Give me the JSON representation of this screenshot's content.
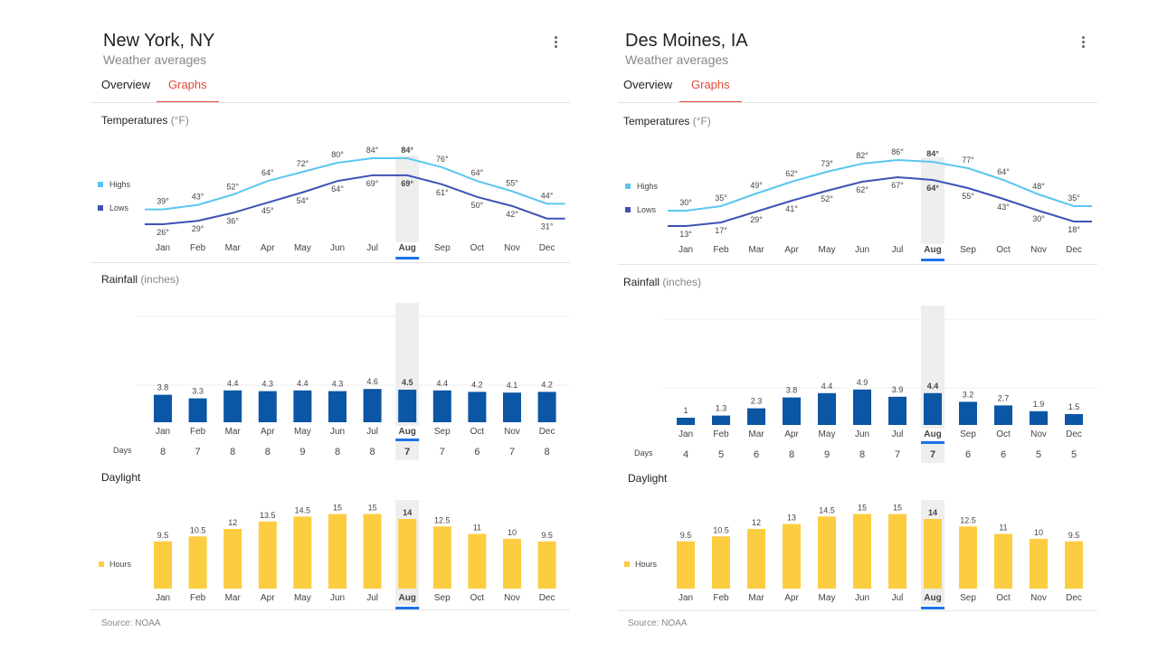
{
  "months": [
    "Jan",
    "Feb",
    "Mar",
    "Apr",
    "May",
    "Jun",
    "Jul",
    "Aug",
    "Sep",
    "Oct",
    "Nov",
    "Dec"
  ],
  "selected_index": 7,
  "colors": {
    "highs": "#5bc6f0",
    "lows": "#3f51b5",
    "rain_bar": "#0b56a5",
    "daylight_bar": "#fccd40",
    "tab_active": "#dd4b39",
    "selected_underline": "#1a73e8"
  },
  "panels": [
    {
      "title": "New York, NY",
      "subtitle": "Weather averages",
      "tabs": [
        "Overview",
        "Graphs"
      ],
      "temp_label": "Temperatures",
      "temp_unit": "(°F)",
      "legend_highs": "Highs",
      "legend_lows": "Lows",
      "rain_label": "Rainfall",
      "rain_unit": "(inches)",
      "days_label": "Days",
      "daylight_label": "Daylight",
      "hours_legend": "Hours",
      "source": "Source: NOAA",
      "chart_data": {
        "temperature": {
          "type": "line",
          "categories": [
            "Jan",
            "Feb",
            "Mar",
            "Apr",
            "May",
            "Jun",
            "Jul",
            "Aug",
            "Sep",
            "Oct",
            "Nov",
            "Dec"
          ],
          "series": [
            {
              "name": "Highs",
              "values": [
                39,
                43,
                52,
                64,
                72,
                80,
                84,
                84,
                76,
                64,
                55,
                44
              ]
            },
            {
              "name": "Lows",
              "values": [
                26,
                29,
                36,
                45,
                54,
                64,
                69,
                69,
                61,
                50,
                42,
                31
              ]
            }
          ]
        },
        "rainfall": {
          "type": "bar",
          "categories": [
            "Jan",
            "Feb",
            "Mar",
            "Apr",
            "May",
            "Jun",
            "Jul",
            "Aug",
            "Sep",
            "Oct",
            "Nov",
            "Dec"
          ],
          "values": [
            3.8,
            3.3,
            4.4,
            4.3,
            4.4,
            4.3,
            4.6,
            4.5,
            4.4,
            4.2,
            4.1,
            4.2
          ],
          "labels": [
            "3.8",
            "3.3",
            "4.4",
            "4.3",
            "4.4",
            "4.3",
            "4.6",
            "4.5",
            "4.4",
            "4.2",
            "4.1",
            "4.2"
          ],
          "days": [
            8,
            7,
            8,
            8,
            9,
            8,
            8,
            7,
            7,
            6,
            7,
            8
          ]
        },
        "daylight": {
          "type": "bar",
          "categories": [
            "Jan",
            "Feb",
            "Mar",
            "Apr",
            "May",
            "Jun",
            "Jul",
            "Aug",
            "Sep",
            "Oct",
            "Nov",
            "Dec"
          ],
          "values": [
            9.5,
            10.5,
            12,
            13.5,
            14.5,
            15,
            15,
            14,
            12.5,
            11,
            10,
            9.5
          ],
          "labels": [
            "9.5",
            "10.5",
            "12",
            "13.5",
            "14.5",
            "15",
            "15",
            "14",
            "12.5",
            "11",
            "10",
            "9.5"
          ]
        }
      }
    },
    {
      "title": "Des Moines, IA",
      "subtitle": "Weather averages",
      "tabs": [
        "Overview",
        "Graphs"
      ],
      "temp_label": "Temperatures",
      "temp_unit": "(°F)",
      "legend_highs": "Highs",
      "legend_lows": "Lows",
      "rain_label": "Rainfall",
      "rain_unit": "(inches)",
      "days_label": "Days",
      "daylight_label": "Daylight",
      "hours_legend": "Hours",
      "source": "Source: NOAA",
      "chart_data": {
        "temperature": {
          "type": "line",
          "categories": [
            "Jan",
            "Feb",
            "Mar",
            "Apr",
            "May",
            "Jun",
            "Jul",
            "Aug",
            "Sep",
            "Oct",
            "Nov",
            "Dec"
          ],
          "series": [
            {
              "name": "Highs",
              "values": [
                30,
                35,
                49,
                62,
                73,
                82,
                86,
                84,
                77,
                64,
                48,
                35
              ]
            },
            {
              "name": "Lows",
              "values": [
                13,
                17,
                29,
                41,
                52,
                62,
                67,
                64,
                55,
                43,
                30,
                18
              ]
            }
          ]
        },
        "rainfall": {
          "type": "bar",
          "categories": [
            "Jan",
            "Feb",
            "Mar",
            "Apr",
            "May",
            "Jun",
            "Jul",
            "Aug",
            "Sep",
            "Oct",
            "Nov",
            "Dec"
          ],
          "values": [
            1,
            1.3,
            2.3,
            3.8,
            4.4,
            4.9,
            3.9,
            4.4,
            3.2,
            2.7,
            1.9,
            1.5
          ],
          "labels": [
            "1",
            "1.3",
            "2.3",
            "3.8",
            "4.4",
            "4.9",
            "3.9",
            "4.4",
            "3.2",
            "2.7",
            "1.9",
            "1.5"
          ],
          "days": [
            4,
            5,
            6,
            8,
            9,
            8,
            7,
            7,
            6,
            6,
            5,
            5
          ]
        },
        "daylight": {
          "type": "bar",
          "categories": [
            "Jan",
            "Feb",
            "Mar",
            "Apr",
            "May",
            "Jun",
            "Jul",
            "Aug",
            "Sep",
            "Oct",
            "Nov",
            "Dec"
          ],
          "values": [
            9.5,
            10.5,
            12,
            13,
            14.5,
            15,
            15,
            14,
            12.5,
            11,
            10,
            9.5
          ],
          "labels": [
            "9.5",
            "10.5",
            "12",
            "13",
            "14.5",
            "15",
            "15",
            "14",
            "12.5",
            "11",
            "10",
            "9.5"
          ]
        }
      }
    }
  ]
}
